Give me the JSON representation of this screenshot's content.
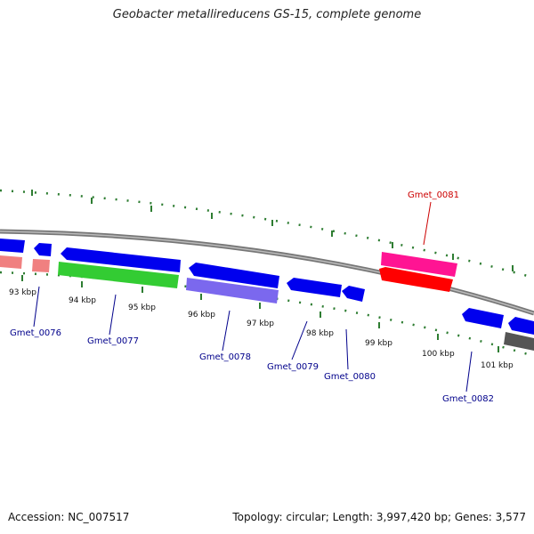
{
  "title": "Geobacter metallireducens GS-15, complete genome",
  "footer": {
    "accession": "Accession: NC_007517",
    "summary": "Topology: circular; Length: 3,997,420 bp; Genes: 3,577"
  },
  "ticks": [
    "93 kbp",
    "94 kbp",
    "95 kbp",
    "96 kbp",
    "97 kbp",
    "98 kbp",
    "99 kbp",
    "100 kbp",
    "101 kbp"
  ],
  "gene_labels": [
    {
      "id": "g76",
      "text": "Gmet_0076",
      "color": "#00008b"
    },
    {
      "id": "g77",
      "text": "Gmet_0077",
      "color": "#00008b"
    },
    {
      "id": "g78",
      "text": "Gmet_0078",
      "color": "#00008b"
    },
    {
      "id": "g79",
      "text": "Gmet_0079",
      "color": "#00008b"
    },
    {
      "id": "g80",
      "text": "Gmet_0080",
      "color": "#00008b"
    },
    {
      "id": "g81",
      "text": "Gmet_0081",
      "color": "#cc0000"
    },
    {
      "id": "g82",
      "text": "Gmet_0082",
      "color": "#00008b"
    }
  ],
  "colors": {
    "cds_blue": "#0000ee",
    "rrna_pink": "#f08080",
    "green": "#33cc33",
    "purple": "#7b68ee",
    "magenta": "#ff1493",
    "red": "#ff0000",
    "gray": "#555555",
    "tick": "#2e7d32"
  }
}
